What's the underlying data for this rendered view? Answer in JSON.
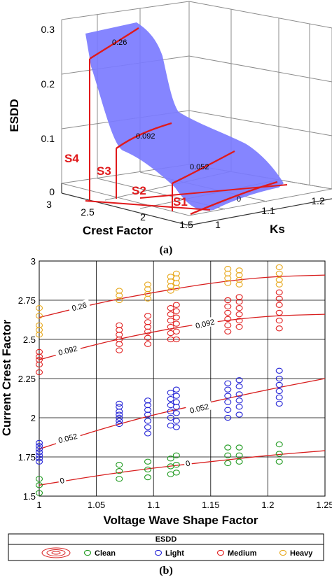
{
  "panel_a": {
    "label": "(a)",
    "chart_data": {
      "type": "surface",
      "zlabel": "ESDD",
      "xlabel": "Crest Factor",
      "ylabel": "Ks",
      "z_ticks": [
        "0",
        "0.1",
        "0.2",
        "0.3"
      ],
      "x_ticks": [
        "3",
        "2.5",
        "2",
        "1.5"
      ],
      "y_ticks": [
        "1",
        "1.1",
        "1.2"
      ],
      "contour_levels": [
        "0.26",
        "0.092",
        "0.052",
        "0"
      ],
      "regions": [
        "S4",
        "S3",
        "S2",
        "S1"
      ],
      "colors": {
        "surface": "#7b7bff",
        "contour": "#e0191b"
      }
    }
  },
  "panel_b": {
    "label": "(b)",
    "chart_data": {
      "type": "scatter",
      "xlabel": "Voltage Wave Shape Factor",
      "ylabel": "Current Crest Factor",
      "xlim": [
        1,
        1.25
      ],
      "ylim": [
        1.5,
        3
      ],
      "x_ticks": [
        "1",
        "1.05",
        "1.1",
        "1.15",
        "1.2",
        "1.25"
      ],
      "y_ticks": [
        "1.5",
        "1.75",
        "2",
        "2.25",
        "2.5",
        "2.75",
        "3"
      ],
      "legend_title": "ESDD",
      "series": [
        {
          "name": "Clean",
          "color": "#1f9a1f",
          "points": [
            [
              1,
              1.52
            ],
            [
              1,
              1.57
            ],
            [
              1,
              1.61
            ],
            [
              1.07,
              1.61
            ],
            [
              1.07,
              1.66
            ],
            [
              1.07,
              1.7
            ],
            [
              1.095,
              1.62
            ],
            [
              1.095,
              1.67
            ],
            [
              1.095,
              1.72
            ],
            [
              1.115,
              1.64
            ],
            [
              1.115,
              1.69
            ],
            [
              1.115,
              1.74
            ],
            [
              1.12,
              1.65
            ],
            [
              1.12,
              1.7
            ],
            [
              1.12,
              1.76
            ],
            [
              1.165,
              1.71
            ],
            [
              1.165,
              1.76
            ],
            [
              1.165,
              1.81
            ],
            [
              1.175,
              1.72
            ],
            [
              1.175,
              1.76
            ],
            [
              1.175,
              1.81
            ],
            [
              1.21,
              1.72
            ],
            [
              1.21,
              1.77
            ],
            [
              1.21,
              1.83
            ]
          ]
        },
        {
          "name": "Light",
          "color": "#2323d6",
          "points": [
            [
              1,
              1.72
            ],
            [
              1,
              1.74
            ],
            [
              1,
              1.76
            ],
            [
              1,
              1.78
            ],
            [
              1,
              1.8
            ],
            [
              1,
              1.82
            ],
            [
              1,
              1.84
            ],
            [
              1.07,
              1.96
            ],
            [
              1.07,
              1.98
            ],
            [
              1.07,
              2.0
            ],
            [
              1.07,
              2.02
            ],
            [
              1.07,
              2.04
            ],
            [
              1.07,
              2.07
            ],
            [
              1.07,
              2.09
            ],
            [
              1.095,
              1.9
            ],
            [
              1.095,
              1.94
            ],
            [
              1.095,
              1.98
            ],
            [
              1.095,
              2.02
            ],
            [
              1.095,
              2.05
            ],
            [
              1.095,
              2.08
            ],
            [
              1.095,
              2.11
            ],
            [
              1.115,
              1.95
            ],
            [
              1.115,
              2.0
            ],
            [
              1.115,
              2.04
            ],
            [
              1.115,
              2.08
            ],
            [
              1.115,
              2.12
            ],
            [
              1.115,
              2.16
            ],
            [
              1.12,
              1.94
            ],
            [
              1.12,
              1.98
            ],
            [
              1.12,
              2.03
            ],
            [
              1.12,
              2.07
            ],
            [
              1.12,
              2.1
            ],
            [
              1.12,
              2.14
            ],
            [
              1.12,
              2.18
            ],
            [
              1.165,
              2.0
            ],
            [
              1.165,
              2.05
            ],
            [
              1.165,
              2.1
            ],
            [
              1.165,
              2.14
            ],
            [
              1.165,
              2.18
            ],
            [
              1.165,
              2.22
            ],
            [
              1.175,
              2.02
            ],
            [
              1.175,
              2.07
            ],
            [
              1.175,
              2.11
            ],
            [
              1.175,
              2.15
            ],
            [
              1.175,
              2.2
            ],
            [
              1.175,
              2.24
            ],
            [
              1.21,
              2.09
            ],
            [
              1.21,
              2.13
            ],
            [
              1.21,
              2.17
            ],
            [
              1.21,
              2.21
            ],
            [
              1.21,
              2.25
            ],
            [
              1.21,
              2.3
            ]
          ]
        },
        {
          "name": "Medium",
          "color": "#e02020",
          "points": [
            [
              1,
              2.29
            ],
            [
              1,
              2.34
            ],
            [
              1,
              2.37
            ],
            [
              1,
              2.39
            ],
            [
              1,
              2.42
            ],
            [
              1.07,
              2.43
            ],
            [
              1.07,
              2.47
            ],
            [
              1.07,
              2.5
            ],
            [
              1.07,
              2.53
            ],
            [
              1.07,
              2.56
            ],
            [
              1.07,
              2.59
            ],
            [
              1.095,
              2.47
            ],
            [
              1.095,
              2.51
            ],
            [
              1.095,
              2.55
            ],
            [
              1.095,
              2.58
            ],
            [
              1.095,
              2.61
            ],
            [
              1.095,
              2.65
            ],
            [
              1.115,
              2.5
            ],
            [
              1.115,
              2.54
            ],
            [
              1.115,
              2.58
            ],
            [
              1.115,
              2.62
            ],
            [
              1.115,
              2.66
            ],
            [
              1.115,
              2.7
            ],
            [
              1.12,
              2.5
            ],
            [
              1.12,
              2.55
            ],
            [
              1.12,
              2.6
            ],
            [
              1.12,
              2.64
            ],
            [
              1.12,
              2.68
            ],
            [
              1.12,
              2.72
            ],
            [
              1.165,
              2.55
            ],
            [
              1.165,
              2.59
            ],
            [
              1.165,
              2.63
            ],
            [
              1.165,
              2.67
            ],
            [
              1.165,
              2.71
            ],
            [
              1.165,
              2.75
            ],
            [
              1.175,
              2.58
            ],
            [
              1.175,
              2.62
            ],
            [
              1.175,
              2.66
            ],
            [
              1.175,
              2.7
            ],
            [
              1.175,
              2.74
            ],
            [
              1.175,
              2.77
            ],
            [
              1.21,
              2.57
            ],
            [
              1.21,
              2.62
            ],
            [
              1.21,
              2.67
            ],
            [
              1.21,
              2.72
            ],
            [
              1.21,
              2.76
            ],
            [
              1.21,
              2.8
            ]
          ]
        },
        {
          "name": "Heavy",
          "color": "#e7a81c",
          "points": [
            [
              1,
              2.53
            ],
            [
              1,
              2.56
            ],
            [
              1,
              2.59
            ],
            [
              1,
              2.65
            ],
            [
              1,
              2.7
            ],
            [
              1.07,
              2.75
            ],
            [
              1.07,
              2.78
            ],
            [
              1.07,
              2.81
            ],
            [
              1.095,
              2.76
            ],
            [
              1.095,
              2.79
            ],
            [
              1.095,
              2.82
            ],
            [
              1.095,
              2.85
            ],
            [
              1.115,
              2.81
            ],
            [
              1.115,
              2.84
            ],
            [
              1.115,
              2.87
            ],
            [
              1.115,
              2.9
            ],
            [
              1.12,
              2.83
            ],
            [
              1.12,
              2.86
            ],
            [
              1.12,
              2.89
            ],
            [
              1.12,
              2.92
            ],
            [
              1.165,
              2.86
            ],
            [
              1.165,
              2.89
            ],
            [
              1.165,
              2.92
            ],
            [
              1.165,
              2.95
            ],
            [
              1.175,
              2.85
            ],
            [
              1.175,
              2.88
            ],
            [
              1.175,
              2.91
            ],
            [
              1.175,
              2.94
            ],
            [
              1.21,
              2.85
            ],
            [
              1.21,
              2.88
            ],
            [
              1.21,
              2.92
            ],
            [
              1.21,
              2.96
            ]
          ]
        }
      ],
      "contours": [
        {
          "label": "0.26",
          "points": [
            [
              1,
              2.64
            ],
            [
              1.05,
              2.73
            ],
            [
              1.1,
              2.8
            ],
            [
              1.15,
              2.86
            ],
            [
              1.2,
              2.9
            ],
            [
              1.25,
              2.91
            ]
          ],
          "label_at": [
            1.035,
            2.71
          ]
        },
        {
          "label": "0.092",
          "points": [
            [
              1,
              2.37
            ],
            [
              1.05,
              2.47
            ],
            [
              1.1,
              2.55
            ],
            [
              1.15,
              2.61
            ],
            [
              1.2,
              2.65
            ],
            [
              1.25,
              2.66
            ]
          ],
          "label_at": [
            1.025,
            2.43
          ],
          "label2": "0.092",
          "label2_at": [
            1.145,
            2.6
          ]
        },
        {
          "label": "0.052",
          "points": [
            [
              1,
              1.8
            ],
            [
              1.05,
              1.92
            ],
            [
              1.1,
              2.02
            ],
            [
              1.15,
              2.1
            ],
            [
              1.2,
              2.18
            ],
            [
              1.25,
              2.25
            ]
          ],
          "label_at": [
            1.025,
            1.87
          ],
          "label2": "0.052",
          "label2_at": [
            1.14,
            2.06
          ]
        },
        {
          "label": "0",
          "points": [
            [
              1,
              1.57
            ],
            [
              1.05,
              1.63
            ],
            [
              1.1,
              1.68
            ],
            [
              1.15,
              1.72
            ],
            [
              1.2,
              1.76
            ],
            [
              1.25,
              1.79
            ]
          ],
          "label_at": [
            1.02,
            1.6
          ],
          "label2": "0",
          "label2_at": [
            1.13,
            1.71
          ]
        }
      ],
      "contour_color": "#d81e1e"
    }
  }
}
